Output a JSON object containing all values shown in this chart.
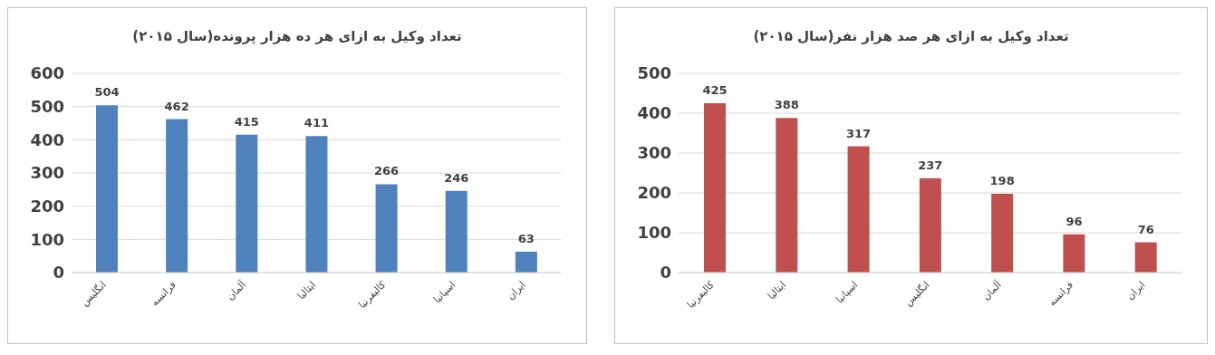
{
  "chart_data": [
    {
      "type": "bar",
      "title": "تعداد وکیل به ازای هر ده هزار پرونده(سال ۲۰۱۵)",
      "categories": [
        "انگلیس",
        "فرانسه",
        "آلمان",
        "ایتالیا",
        "کالیفرنیا",
        "اسپانیا",
        "ایران"
      ],
      "values": [
        504,
        462,
        415,
        411,
        266,
        246,
        63
      ],
      "color": "#4f81bd",
      "ylim": [
        0,
        600
      ],
      "yticks": [
        0,
        100,
        200,
        300,
        400,
        500,
        600
      ],
      "grid": "y",
      "data_labels": true
    },
    {
      "type": "bar",
      "title": "تعداد وکیل به ازای هر صد هزار نفر(سال ۲۰۱۵)",
      "categories": [
        "کالیفرنیا",
        "ایتالیا",
        "اسپانیا",
        "انگلیس",
        "آلمان",
        "فرانسه",
        "ایران"
      ],
      "values": [
        425,
        388,
        317,
        237,
        198,
        96,
        76
      ],
      "color": "#c0504d",
      "ylim": [
        0,
        500
      ],
      "yticks": [
        0,
        100,
        200,
        300,
        400,
        500
      ],
      "grid": "y",
      "data_labels": true
    }
  ]
}
